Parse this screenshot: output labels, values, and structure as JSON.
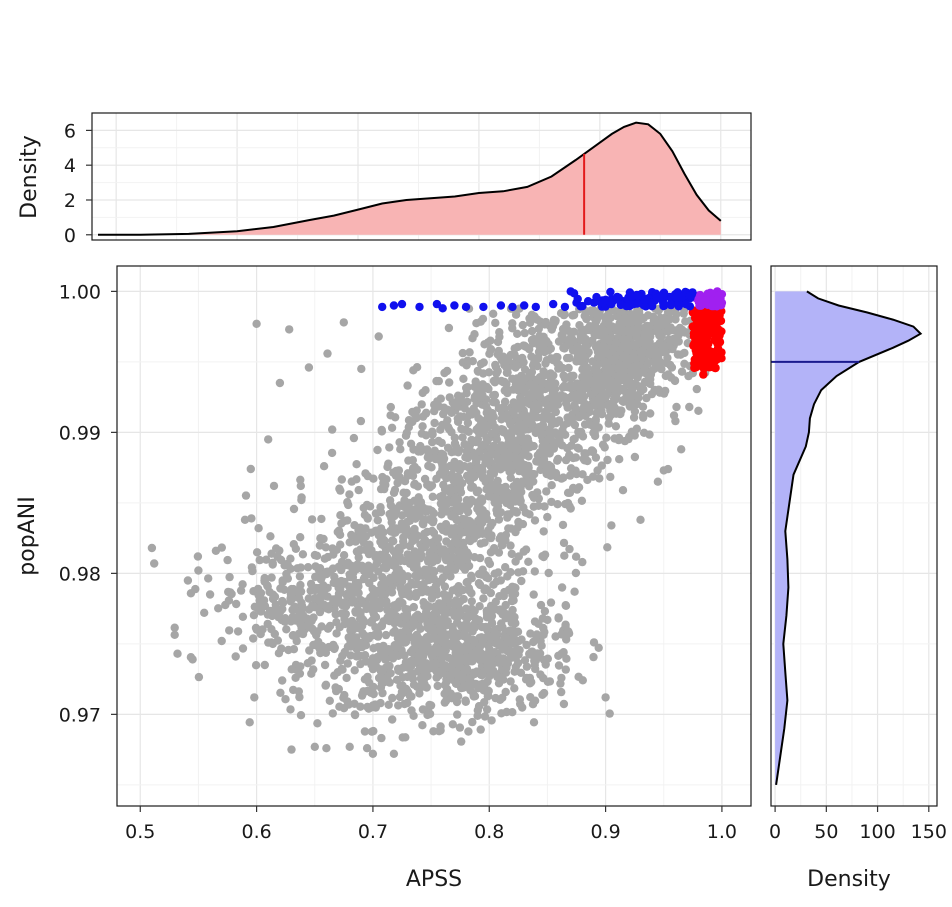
{
  "chart_data": [
    {
      "id": "top-density",
      "type": "area",
      "description": "Marginal density of APSS",
      "xlabel": "",
      "ylabel": "Density",
      "xlim": [
        0.48,
        1.025
      ],
      "ylim": [
        -0.3,
        7.0
      ],
      "yticks": [
        0,
        2,
        4,
        6
      ],
      "ytick_labels": [
        "0",
        "2",
        "4",
        "6"
      ],
      "fill_color": "#f8b4b4",
      "line_color": "#000000",
      "marker_line": {
        "x": 0.887,
        "color": "#e31a1c"
      },
      "x": [
        0.485,
        0.52,
        0.56,
        0.6,
        0.63,
        0.66,
        0.68,
        0.7,
        0.72,
        0.74,
        0.76,
        0.78,
        0.8,
        0.82,
        0.84,
        0.86,
        0.88,
        0.9,
        0.91,
        0.92,
        0.93,
        0.94,
        0.95,
        0.96,
        0.97,
        0.98,
        0.99,
        1.0
      ],
      "y": [
        0.0,
        0.0,
        0.05,
        0.2,
        0.45,
        0.85,
        1.1,
        1.45,
        1.8,
        2.0,
        2.1,
        2.2,
        2.4,
        2.5,
        2.75,
        3.35,
        4.3,
        5.3,
        5.8,
        6.2,
        6.45,
        6.35,
        5.8,
        4.8,
        3.5,
        2.3,
        1.4,
        0.8
      ]
    },
    {
      "id": "scatter",
      "type": "scatter",
      "xlabel": "APSS",
      "ylabel": "popANI",
      "xlim": [
        0.48,
        1.025
      ],
      "ylim": [
        0.9635,
        1.0018
      ],
      "xticks": [
        0.5,
        0.6,
        0.7,
        0.8,
        0.9,
        1.0
      ],
      "xtick_labels": [
        "0.5",
        "0.6",
        "0.7",
        "0.8",
        "0.9",
        "1.0"
      ],
      "yticks": [
        0.97,
        0.98,
        0.99,
        1.0
      ],
      "ytick_labels": [
        "0.97",
        "0.98",
        "0.99",
        "1.00"
      ],
      "series": [
        {
          "color": "#a6a6a6",
          "points": [
            [
              0.51,
              0.9818
            ],
            [
              0.512,
              0.9807
            ],
            [
              0.532,
              0.9743
            ],
            [
              0.545,
              0.9739
            ],
            [
              0.55,
              0.9802
            ],
            [
              0.555,
              0.9772
            ],
            [
              0.56,
              0.9785
            ],
            [
              0.565,
              0.9816
            ],
            [
              0.57,
              0.9752
            ],
            [
              0.582,
              0.9741
            ],
            [
              0.59,
              0.9838
            ],
            [
              0.595,
              0.9874
            ],
            [
              0.598,
              0.9712
            ],
            [
              0.6,
              0.9977
            ],
            [
              0.61,
              0.9895
            ],
            [
              0.615,
              0.9862
            ],
            [
              0.62,
              0.9935
            ],
            [
              0.622,
              0.9724
            ],
            [
              0.628,
              0.9973
            ],
            [
              0.63,
              0.9675
            ],
            [
              0.638,
              0.9862
            ],
            [
              0.645,
              0.9946
            ],
            [
              0.65,
              0.9677
            ],
            [
              0.658,
              0.9876
            ],
            [
              0.66,
              0.9676
            ],
            [
              0.665,
              0.9902
            ],
            [
              0.672,
              0.9738
            ],
            [
              0.675,
              0.9978
            ],
            [
              0.68,
              0.9677
            ],
            [
              0.69,
              0.9945
            ],
            [
              0.695,
              0.9676
            ],
            [
              0.7,
              0.9672
            ],
            [
              0.705,
              0.9968
            ],
            [
              0.718,
              0.9672
            ],
            [
              0.735,
              0.9699
            ],
            [
              0.752,
              0.9688
            ],
            [
              0.79,
              0.9699
            ],
            [
              0.835,
              0.9722
            ],
            [
              0.85,
              0.9767
            ],
            [
              0.89,
              0.9751
            ],
            [
              0.9,
              0.9712
            ],
            [
              0.915,
              0.9859
            ],
            [
              0.93,
              0.9838
            ],
            [
              0.945,
              0.9865
            ],
            [
              0.95,
              0.9873
            ],
            [
              0.96,
              0.9908
            ],
            [
              0.965,
              0.9888
            ],
            [
              0.972,
              0.9918
            ],
            [
              0.975,
              0.9942
            ],
            [
              0.87,
              0.9846
            ],
            [
              0.905,
              0.9834
            ],
            [
              0.88,
              0.9808
            ]
          ]
        },
        {
          "color": "#1010ee",
          "points": [
            [
              0.708,
              0.9989
            ],
            [
              0.718,
              0.999
            ],
            [
              0.725,
              0.9991
            ],
            [
              0.74,
              0.9989
            ],
            [
              0.755,
              0.9991
            ],
            [
              0.76,
              0.9988
            ],
            [
              0.77,
              0.999
            ],
            [
              0.78,
              0.9989
            ],
            [
              0.795,
              0.9989
            ],
            [
              0.81,
              0.999
            ],
            [
              0.82,
              0.9989
            ],
            [
              0.83,
              0.999
            ],
            [
              0.84,
              0.9989
            ],
            [
              0.855,
              0.9991
            ],
            [
              0.865,
              0.9989
            ],
            [
              0.87,
              1.0
            ],
            [
              0.875,
              0.9992
            ],
            [
              0.885,
              0.9993
            ],
            [
              0.89,
              0.9992
            ],
            [
              0.9,
              0.9994
            ],
            [
              0.905,
              0.9991
            ],
            [
              0.91,
              0.9996
            ],
            [
              0.915,
              0.9993
            ],
            [
              0.92,
              0.9996
            ],
            [
              0.925,
              0.9992
            ],
            [
              0.93,
              0.9997
            ],
            [
              0.935,
              0.9994
            ],
            [
              0.94,
              0.9998
            ],
            [
              0.945,
              0.9995
            ],
            [
              0.95,
              0.9999
            ],
            [
              0.955,
              0.9996
            ],
            [
              0.96,
              0.9998
            ],
            [
              0.965,
              0.9994
            ],
            [
              0.97,
              0.9999
            ],
            [
              0.975,
              0.9996
            ]
          ]
        },
        {
          "color": "#ff0000",
          "points": [
            [
              0.975,
              0.9985
            ],
            [
              0.98,
              0.998
            ],
            [
              0.985,
              0.9975
            ],
            [
              0.99,
              0.997
            ],
            [
              0.995,
              0.9965
            ],
            [
              0.978,
              0.996
            ],
            [
              0.983,
              0.9955
            ],
            [
              0.988,
              0.995
            ],
            [
              0.993,
              0.9978
            ],
            [
              0.998,
              0.9983
            ],
            [
              0.976,
              0.9968
            ],
            [
              0.981,
              0.9962
            ],
            [
              0.986,
              0.9972
            ],
            [
              0.991,
              0.9957
            ],
            [
              0.996,
              0.9952
            ],
            [
              0.979,
              0.9947
            ],
            [
              0.984,
              0.9941
            ],
            [
              0.989,
              0.9953
            ],
            [
              0.975,
              0.9975
            ],
            [
              0.997,
              0.997
            ],
            [
              0.978,
              0.9952
            ],
            [
              0.992,
              0.9987
            ]
          ]
        },
        {
          "color": "#a020f0",
          "points": [
            [
              0.98,
              0.9997
            ],
            [
              0.985,
              0.9995
            ],
            [
              0.99,
              0.9999
            ],
            [
              0.995,
              0.9996
            ],
            [
              1.0,
              0.9998
            ],
            [
              0.983,
              0.9992
            ],
            [
              0.988,
              0.9994
            ],
            [
              0.993,
              0.9991
            ],
            [
              0.998,
              0.9993
            ],
            [
              0.978,
              0.9995
            ],
            [
              1.0,
              0.9992
            ],
            [
              0.996,
              1.0
            ]
          ]
        }
      ]
    },
    {
      "id": "right-density",
      "type": "area",
      "description": "Marginal density of popANI (horizontal)",
      "xlabel": "Density",
      "ylabel": "",
      "xlim": [
        -4,
        158
      ],
      "ylim": [
        0.9635,
        1.0018
      ],
      "xticks": [
        0,
        50,
        100,
        150
      ],
      "xtick_labels": [
        "0",
        "50",
        "100",
        "150"
      ],
      "fill_color": "#b3b3f8",
      "line_color": "#000000",
      "marker_line": {
        "y": 0.995,
        "color": "#1a1a8e"
      },
      "y": [
        0.965,
        0.967,
        0.969,
        0.971,
        0.973,
        0.975,
        0.977,
        0.979,
        0.981,
        0.983,
        0.985,
        0.987,
        0.989,
        0.99,
        0.991,
        0.992,
        0.993,
        0.994,
        0.995,
        0.996,
        0.9965,
        0.997,
        0.9975,
        0.998,
        0.9985,
        0.999,
        0.9995,
        1.0
      ],
      "x": [
        1,
        5,
        9,
        12,
        10,
        8,
        11,
        13,
        12,
        10,
        14,
        18,
        30,
        33,
        34,
        38,
        45,
        60,
        82,
        115,
        130,
        142,
        135,
        115,
        90,
        62,
        42,
        31
      ]
    }
  ]
}
